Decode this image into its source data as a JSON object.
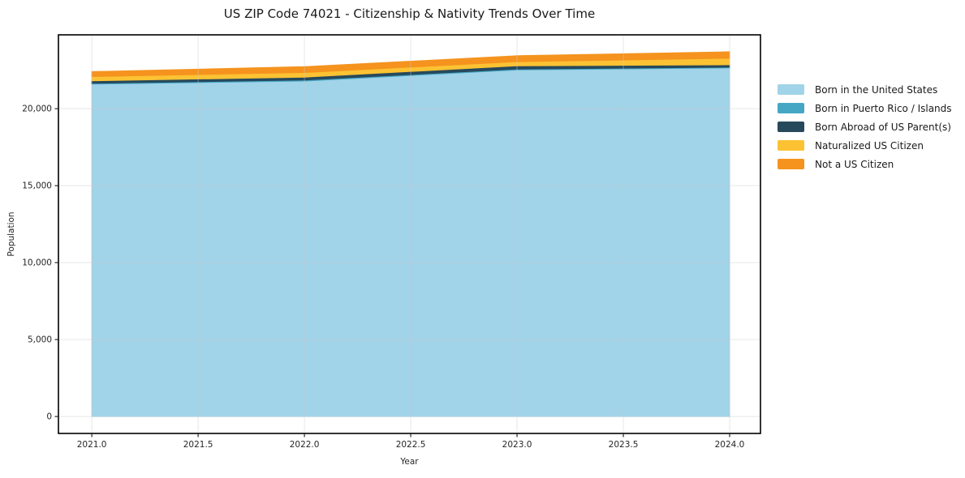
{
  "title": "US ZIP Code 74021 - Citizenship & Nativity Trends Over Time",
  "chart_data": {
    "type": "area",
    "stacked": true,
    "title": "US ZIP Code 74021 - Citizenship & Nativity Trends Over Time",
    "xlabel": "Year",
    "ylabel": "Population",
    "x": [
      2021,
      2022,
      2023,
      2024
    ],
    "series": [
      {
        "name": "Born in the United States",
        "color": "#a1d3e9",
        "values": [
          21600,
          21800,
          22520,
          22650
        ]
      },
      {
        "name": "Born in Puerto Rico / Islands",
        "color": "#46a7c5",
        "values": [
          50,
          60,
          60,
          50
        ]
      },
      {
        "name": "Born Abroad of US Parent(s)",
        "color": "#27495c",
        "values": [
          160,
          190,
          210,
          160
        ]
      },
      {
        "name": "Naturalized US Citizen",
        "color": "#fcc233",
        "values": [
          280,
          300,
          270,
          420
        ]
      },
      {
        "name": "Not a US Citizen",
        "color": "#f5931e",
        "values": [
          320,
          380,
          380,
          420
        ]
      }
    ],
    "xticks": [
      2021.0,
      2021.5,
      2022.0,
      2022.5,
      2023.0,
      2023.5,
      2024.0
    ],
    "yticks": [
      0,
      5000,
      10000,
      15000,
      20000
    ],
    "xlim": [
      2020.843,
      2024.145
    ],
    "ylim": [
      -1100,
      24800
    ],
    "grid": true,
    "legend_position": "right-outside",
    "frame_color": "#000000",
    "grid_color": "#cccccc",
    "tick_color": "#262626"
  }
}
